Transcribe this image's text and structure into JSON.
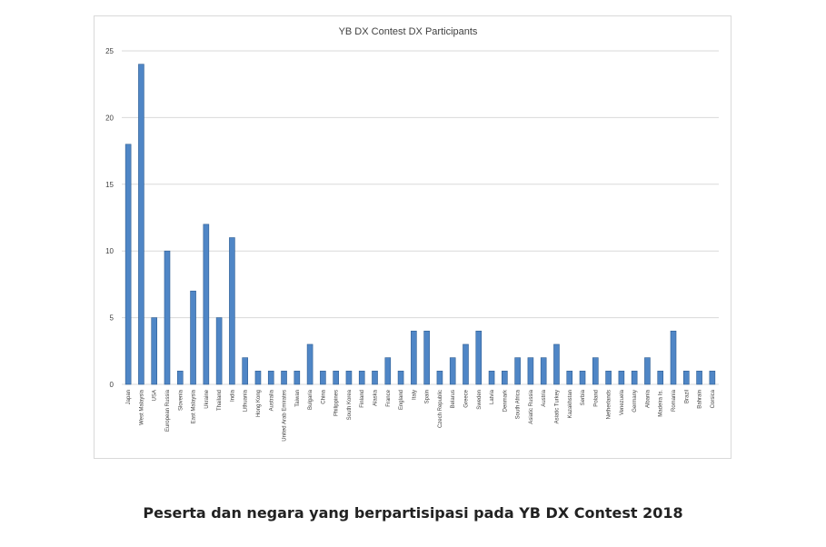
{
  "caption": "Peserta dan negara yang berpartisipasi pada YB DX Contest 2018",
  "colors": {
    "bar": "#4f86c6",
    "bar_edge": "#2f5e93",
    "grid": "#d9d9d9",
    "axis_text": "#404040",
    "title": "#404040"
  },
  "chart_data": {
    "type": "bar",
    "title": "YB DX Contest DX Participants",
    "xlabel": "",
    "ylabel": "",
    "ylim": [
      0,
      25
    ],
    "yticks": [
      0,
      5,
      10,
      15,
      20,
      25
    ],
    "grid": true,
    "legend": "none",
    "categories": [
      "Japan",
      "West Malaysia",
      "USA",
      "European Russia",
      "Slovenia",
      "East Malaysia",
      "Ukraine",
      "Thailand",
      "India",
      "Lithuania",
      "Hong Kong",
      "Australia",
      "United Arab Emirates",
      "Taiwan",
      "Bulgaria",
      "China",
      "Philippines",
      "South Korea",
      "Finland",
      "Alaska",
      "France",
      "England",
      "Italy",
      "Spain",
      "Czech Republic",
      "Belarus",
      "Greece",
      "Sweden",
      "Latvia",
      "Denmark",
      "South Africa",
      "Asiatic Russia",
      "Austria",
      "Asiatic Turkey",
      "Kazakhstan",
      "Serbia",
      "Poland",
      "Netherlands",
      "Venezuela",
      "Germany",
      "Albania",
      "Madeira Is.",
      "Romania",
      "Brazil",
      "Bahrain",
      "Corsica"
    ],
    "values": [
      18,
      24,
      5,
      10,
      1,
      7,
      12,
      5,
      11,
      2,
      1,
      1,
      1,
      1,
      3,
      1,
      1,
      1,
      1,
      1,
      2,
      1,
      4,
      4,
      1,
      2,
      3,
      4,
      1,
      1,
      2,
      2,
      2,
      3,
      1,
      1,
      2,
      1,
      1,
      1,
      2,
      1,
      4,
      1,
      1,
      1
    ]
  }
}
